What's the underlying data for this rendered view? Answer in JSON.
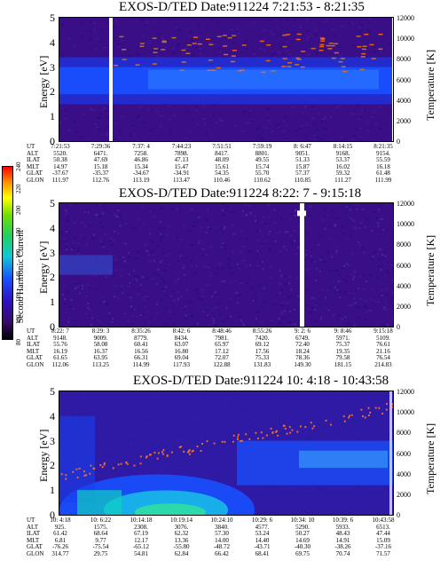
{
  "colorbar": {
    "label": "Second Harmonic Current",
    "ticks": [
      "80",
      "100",
      "120",
      "140",
      "160",
      "180",
      "200",
      "220",
      "240"
    ]
  },
  "panels": [
    {
      "title": "EXOS-D/TED  Date:911224  7:21:53 - 8:21:35",
      "ylabel": "Energy [eV]",
      "y2label": "Temperature [K]",
      "energy_ticks": [
        "0",
        "1",
        "2",
        "3",
        "4",
        "5"
      ],
      "temp_ticks": [
        "0",
        "2000",
        "4000",
        "6000",
        "8000",
        "10000",
        "12000"
      ],
      "table_labels": [
        "UT",
        "ALT",
        "ILAT",
        "MLT",
        "GLAT",
        "GLON"
      ],
      "table_cols": [
        [
          "7:21:53",
          "5520.",
          "50.38",
          "14.97",
          "-37.67",
          "111.97"
        ],
        [
          "7:29:36",
          "6471.",
          "47.69",
          "15.18",
          "-35.37",
          "112.76"
        ],
        [
          "7:37: 4",
          "7258.",
          "46.86",
          "15.34",
          "-34.67",
          "113.19"
        ],
        [
          "7:44:23",
          "7898.",
          "47.13",
          "15.47",
          "-34.91",
          "113.47"
        ],
        [
          "7:51:51",
          "8417.",
          "48.09",
          "15.61",
          "54.35",
          "110.46"
        ],
        [
          "7:59:19",
          "8801.",
          "49.55",
          "15.74",
          "55.70",
          "110.62"
        ],
        [
          "8: 6:47",
          "9051.",
          "51.33",
          "15.87",
          "57.37",
          "110.85"
        ],
        [
          "8:14:15",
          "9168.",
          "53.37",
          "16.02",
          "59.32",
          "111.27"
        ],
        [
          "8:21:35",
          "9154.",
          "55.59",
          "16.18",
          "61.48",
          "111.99"
        ]
      ]
    },
    {
      "title": "EXOS-D/TED  Date:911224  8:22: 7 - 9:15:18",
      "ylabel": "Energy [eV]",
      "y2label": "Temperature [K]",
      "energy_ticks": [
        "0",
        "1",
        "2",
        "3",
        "4",
        "5"
      ],
      "temp_ticks": [
        "0",
        "2000",
        "4000",
        "6000",
        "8000",
        "10000",
        "12000"
      ],
      "table_labels": [
        "UT",
        "ALT",
        "ILAT",
        "MLT",
        "GLAT",
        "GLON"
      ],
      "table_cols": [
        [
          "8:22: 7",
          "9148.",
          "55.76",
          "16.19",
          "61.65",
          "112.06"
        ],
        [
          "8:29: 3",
          "9009.",
          "58.08",
          "16.37",
          "63.95",
          "113.25"
        ],
        [
          "8:35:26",
          "8779.",
          "60.41",
          "16.56",
          "66.31",
          "114.99"
        ],
        [
          "8:42: 6",
          "8434.",
          "63.07",
          "16.80",
          "69.04",
          "117.93"
        ],
        [
          "8:48:46",
          "7981.",
          "65.97",
          "17.12",
          "72.07",
          "122.88"
        ],
        [
          "8:55:26",
          "7420.",
          "69.12",
          "17.56",
          "75.33",
          "131.83"
        ],
        [
          "9: 2: 6",
          "6749.",
          "72.40",
          "18.24",
          "78.36",
          "149.30"
        ],
        [
          "9: 8:46",
          "5971.",
          "75.37",
          "19.35",
          "79.58",
          "181.15"
        ],
        [
          "9:15:18",
          "5109.",
          "76.61",
          "21.16",
          "76.54",
          "214.83"
        ]
      ]
    },
    {
      "title": "EXOS-D/TED  Date:911224  10: 4:18 - 10:43:58",
      "ylabel": "Energy [eV]",
      "y2label": "Temperature [K]",
      "energy_ticks": [
        "0",
        "1",
        "2",
        "3",
        "4",
        "5"
      ],
      "temp_ticks": [
        "0",
        "2000",
        "4000",
        "6000",
        "8000",
        "10000",
        "12000"
      ],
      "table_labels": [
        "UT",
        "ALT",
        "ILAT",
        "MLT",
        "GLAT",
        "GLON"
      ],
      "table_cols": [
        [
          "10: 4:18",
          "925.",
          "61.42",
          "6.81",
          "-76.26",
          "314.77"
        ],
        [
          "10: 6:22",
          "1575.",
          "68.64",
          "9.77",
          "-75.54",
          "29.75"
        ],
        [
          "10:14:18",
          "2308.",
          "67.19",
          "12.17",
          "-65.12",
          "54.81"
        ],
        [
          "10:19:14",
          "3076.",
          "62.32",
          "13.36",
          "-55.80",
          "62.84"
        ],
        [
          "10:24:10",
          "3840.",
          "57.30",
          "14.00",
          "-48.72",
          "66.42"
        ],
        [
          "10:29: 6",
          "4577.",
          "53.24",
          "14.40",
          "-43.71",
          "68.41"
        ],
        [
          "10:34: 10",
          "5290.",
          "50.27",
          "14.69",
          "-40.30",
          "69.75"
        ],
        [
          "10:39: 6",
          "5933.",
          "48.43",
          "14.91",
          "-38.26",
          "70.74"
        ],
        [
          "10:43:58",
          "6513.",
          "47.44",
          "15.09",
          "-37.16",
          "71.57"
        ]
      ]
    }
  ],
  "chart_data": [
    {
      "type": "heatmap",
      "title": "EXOS-D/TED  Date:911224  7:21:53 - 8:21:35",
      "xlabel": "UT",
      "ylabel": "Energy [eV]",
      "y2label": "Temperature [K]",
      "ylim": [
        0,
        5
      ],
      "y2lim": [
        0,
        12000
      ],
      "x_ticks": [
        "7:21:53",
        "7:29:36",
        "7:37: 4",
        "7:44:23",
        "7:51:51",
        "7:59:19",
        "8: 6:47",
        "8:14:15",
        "8:21:35"
      ],
      "colorbar_range": [
        80,
        240
      ],
      "description_of_bands": "strong emission band near 2.5 eV across the interval"
    },
    {
      "type": "heatmap",
      "title": "EXOS-D/TED  Date:911224  8:22: 7 - 9:15:18",
      "xlabel": "UT",
      "ylabel": "Energy [eV]",
      "y2label": "Temperature [K]",
      "ylim": [
        0,
        5
      ],
      "y2lim": [
        0,
        12000
      ],
      "x_ticks": [
        "8:22: 7",
        "8:29: 3",
        "8:35:26",
        "8:42: 6",
        "8:48:46",
        "8:55:26",
        "9: 2: 6",
        "9: 8:46",
        "9:15:18"
      ],
      "colorbar_range": [
        80,
        240
      ]
    },
    {
      "type": "heatmap",
      "title": "EXOS-D/TED  Date:911224  10: 4:18 - 10:43:58",
      "xlabel": "UT",
      "ylabel": "Energy [eV]",
      "y2label": "Temperature [K]",
      "ylim": [
        0,
        5
      ],
      "y2lim": [
        0,
        12000
      ],
      "x_ticks": [
        "10: 4:18",
        "10: 6:22",
        "10:14:18",
        "10:19:14",
        "10:24:10",
        "10:29: 6",
        "10:34: 10",
        "10:39: 6",
        "10:43:58"
      ],
      "colorbar_range": [
        80,
        240
      ]
    }
  ]
}
